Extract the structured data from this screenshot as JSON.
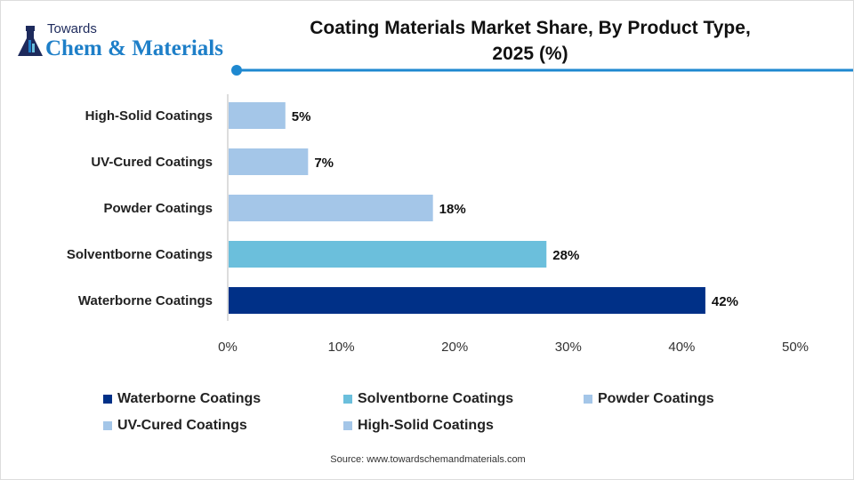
{
  "brand": {
    "line1": "Towards",
    "line2": "Chem & Materials"
  },
  "colors": {
    "accent": "#1e88d0",
    "waterborne": "#003087",
    "solventborne": "#6bbfdc",
    "light": "#a4c6e8"
  },
  "source": "Source: www.towardschemandmaterials.com",
  "chart_data": {
    "type": "bar",
    "orientation": "horizontal",
    "title": "Coating Materials Market Share, By Product Type, 2025 (%)",
    "title_lines": [
      "Coating Materials Market Share, By Product Type,",
      "2025 (%)"
    ],
    "categories": [
      "High-Solid Coatings",
      "UV-Cured Coatings",
      "Powder Coatings",
      "Solventborne Coatings",
      "Waterborne Coatings"
    ],
    "values": [
      5,
      7,
      18,
      28,
      42
    ],
    "data_labels": [
      "5%",
      "7%",
      "18%",
      "28%",
      "42%"
    ],
    "bar_colors": [
      "#a4c6e8",
      "#a4c6e8",
      "#a4c6e8",
      "#6bbfdc",
      "#003087"
    ],
    "xlim": [
      0,
      50
    ],
    "xticks": [
      "0%",
      "10%",
      "20%",
      "30%",
      "40%",
      "50%"
    ],
    "grid": false,
    "legend_position": "bottom",
    "legend": [
      {
        "label": "Waterborne Coatings",
        "color": "#003087"
      },
      {
        "label": "Solventborne Coatings",
        "color": "#6bbfdc"
      },
      {
        "label": "Powder Coatings",
        "color": "#a4c6e8"
      },
      {
        "label": "UV-Cured Coatings",
        "color": "#a4c6e8"
      },
      {
        "label": "High-Solid Coatings",
        "color": "#a4c6e8"
      }
    ]
  }
}
